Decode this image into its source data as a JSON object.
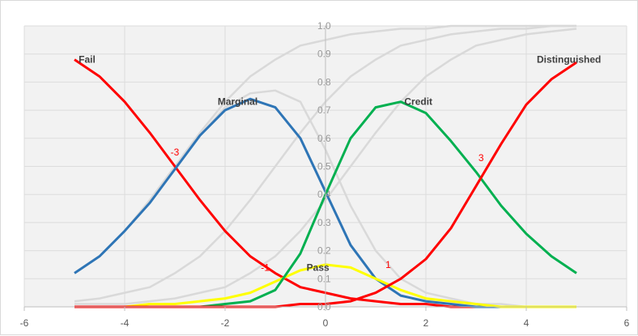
{
  "chart_data": {
    "type": "line",
    "x_ticks": [
      -6,
      -4,
      -2,
      0,
      2,
      4,
      6
    ],
    "y_ticks": [
      "0.0",
      "0.1",
      "0.2",
      "0.3",
      "0.4",
      "0.5",
      "0.6",
      "0.7",
      "0.8",
      "0.9",
      "1.0"
    ],
    "xlim": [
      -6,
      6
    ],
    "ylim": [
      0,
      1
    ],
    "grid": true,
    "plot_background": "#f2f2f2",
    "x": [
      -5,
      -4.5,
      -4,
      -3.5,
      -3,
      -2.5,
      -2,
      -1.5,
      -1,
      -0.5,
      0,
      0.5,
      1,
      1.5,
      2,
      2.5,
      3,
      3.5,
      4,
      4.5,
      5
    ],
    "category_curves": [
      {
        "label": "Fail",
        "color": "#ff0000",
        "values": [
          0.88,
          0.82,
          0.73,
          0.62,
          0.5,
          0.38,
          0.27,
          0.18,
          0.12,
          0.07,
          0.05,
          0.03,
          0.02,
          0.01,
          0.01,
          0.0,
          0.0,
          0.0,
          0.0,
          0.0,
          0.0
        ]
      },
      {
        "label": "Marginal",
        "color": "#2e75b6",
        "values": [
          0.12,
          0.18,
          0.27,
          0.37,
          0.49,
          0.61,
          0.7,
          0.74,
          0.71,
          0.6,
          0.41,
          0.22,
          0.1,
          0.04,
          0.02,
          0.01,
          0.0,
          0.0,
          0.0,
          0.0,
          0.0
        ]
      },
      {
        "label": "Pass",
        "color": "#ffff00",
        "values": [
          0.0,
          0.0,
          0.0,
          0.01,
          0.01,
          0.02,
          0.03,
          0.05,
          0.09,
          0.13,
          0.15,
          0.14,
          0.1,
          0.06,
          0.03,
          0.02,
          0.01,
          0.0,
          0.0,
          0.0,
          0.0
        ]
      },
      {
        "label": "Credit",
        "color": "#00b050",
        "values": [
          0.0,
          0.0,
          0.0,
          0.0,
          0.0,
          0.0,
          0.01,
          0.02,
          0.06,
          0.19,
          0.4,
          0.6,
          0.71,
          0.73,
          0.69,
          0.59,
          0.48,
          0.36,
          0.26,
          0.18,
          0.12
        ]
      },
      {
        "label": "Distinguished",
        "color": "#ff0000",
        "values": [
          0.0,
          0.0,
          0.0,
          0.0,
          0.0,
          0.0,
          0.0,
          0.0,
          0.0,
          0.01,
          0.01,
          0.02,
          0.05,
          0.1,
          0.17,
          0.28,
          0.43,
          0.58,
          0.72,
          0.81,
          0.87
        ]
      }
    ],
    "cumulative_curves": [
      {
        "color": "#d9d9d9",
        "values": [
          0.12,
          0.18,
          0.27,
          0.38,
          0.5,
          0.62,
          0.73,
          0.82,
          0.88,
          0.93,
          0.95,
          0.97,
          0.98,
          0.99,
          0.99,
          1.0,
          1.0,
          1.0,
          1.0,
          1.0,
          1.0
        ]
      },
      {
        "color": "#d9d9d9",
        "values": [
          0.02,
          0.03,
          0.05,
          0.07,
          0.12,
          0.18,
          0.27,
          0.38,
          0.5,
          0.62,
          0.73,
          0.82,
          0.88,
          0.93,
          0.95,
          0.97,
          0.98,
          0.99,
          0.99,
          1.0,
          1.0
        ]
      },
      {
        "color": "#d9d9d9",
        "values": [
          0.01,
          0.01,
          0.01,
          0.02,
          0.03,
          0.05,
          0.07,
          0.12,
          0.18,
          0.27,
          0.38,
          0.5,
          0.62,
          0.73,
          0.82,
          0.88,
          0.93,
          0.95,
          0.97,
          0.98,
          0.99
        ]
      },
      {
        "color": "#d9d9d9",
        "values": [
          0.12,
          0.18,
          0.27,
          0.37,
          0.49,
          0.61,
          0.71,
          0.76,
          0.77,
          0.73,
          0.56,
          0.36,
          0.2,
          0.1,
          0.05,
          0.03,
          0.01,
          0.01,
          0.0,
          0.0,
          0.0
        ]
      }
    ],
    "curve_labels": [
      {
        "text": "Fail",
        "x": -4.75,
        "y": 0.88
      },
      {
        "text": "Marginal",
        "x": -1.75,
        "y": 0.73
      },
      {
        "text": "Pass",
        "x": -0.15,
        "y": 0.14
      },
      {
        "text": "Credit",
        "x": 1.85,
        "y": 0.73
      },
      {
        "text": "Distinguished",
        "x": 4.85,
        "y": 0.88
      }
    ],
    "threshold_labels": [
      {
        "text": "-3",
        "x": -3,
        "y": 0.55
      },
      {
        "text": "-1",
        "x": -1.2,
        "y": 0.14
      },
      {
        "text": "1",
        "x": 1.25,
        "y": 0.15
      },
      {
        "text": "3",
        "x": 3.1,
        "y": 0.53
      }
    ]
  }
}
